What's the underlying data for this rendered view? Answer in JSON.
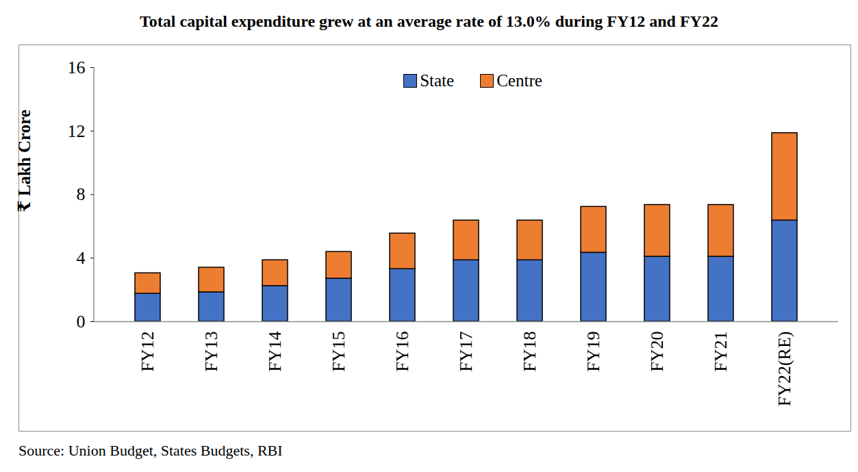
{
  "chart_data": {
    "type": "bar",
    "title": "Total capital expenditure grew at an average rate of 13.0% during FY12 and FY22",
    "y_label": "₹ Lakh Crore",
    "source": "Source: Union Budget, States Budgets, RBI",
    "categories": [
      "FY12",
      "FY13",
      "FY14",
      "FY15",
      "FY16",
      "FY17",
      "FY18",
      "FY19",
      "FY20",
      "FY21",
      "FY22(RE)"
    ],
    "series": [
      {
        "name": "State",
        "color": "#4472c4",
        "values": [
          1.76,
          1.85,
          2.24,
          2.71,
          3.31,
          3.87,
          3.87,
          4.34,
          4.09,
          4.09,
          6.37
        ]
      },
      {
        "name": "Centre",
        "color": "#ed7d31",
        "values": [
          1.29,
          1.55,
          1.63,
          1.68,
          2.24,
          2.5,
          2.5,
          2.89,
          3.26,
          3.26,
          5.5
        ]
      }
    ],
    "ylim": [
      0,
      16
    ],
    "yticks": [
      0,
      4,
      8,
      12,
      16
    ],
    "stacked": true,
    "grid": false,
    "legend": "top"
  }
}
